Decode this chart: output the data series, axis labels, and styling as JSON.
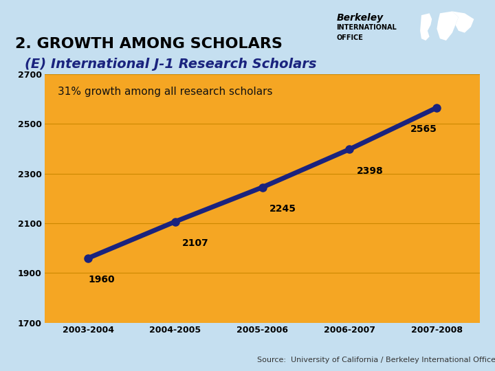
{
  "title": "2. GROWTH AMONG SCHOLARS",
  "subtitle": "(E) International J-1 Research Scholars",
  "annotation": "31% growth among all research scholars",
  "source": "Source:  University of California / Berkeley International Office (BIO)",
  "categories": [
    "2003-2004",
    "2004-2005",
    "2005-2006",
    "2006-2007",
    "2007-2008"
  ],
  "values": [
    1960,
    2107,
    2245,
    2398,
    2565
  ],
  "ylim": [
    1700,
    2700
  ],
  "yticks": [
    1700,
    1900,
    2100,
    2300,
    2500,
    2700
  ],
  "line_color": "#1a237e",
  "marker_color": "#1a237e",
  "bg_color": "#c5dff0",
  "plot_bg_color": "#f5a623",
  "grid_color": "#cc8800",
  "title_color": "#000000",
  "subtitle_color": "#1a237e",
  "title_fontsize": 16,
  "subtitle_fontsize": 14,
  "annotation_fontsize": 11,
  "label_fontsize": 10,
  "tick_fontsize": 9,
  "source_fontsize": 8
}
